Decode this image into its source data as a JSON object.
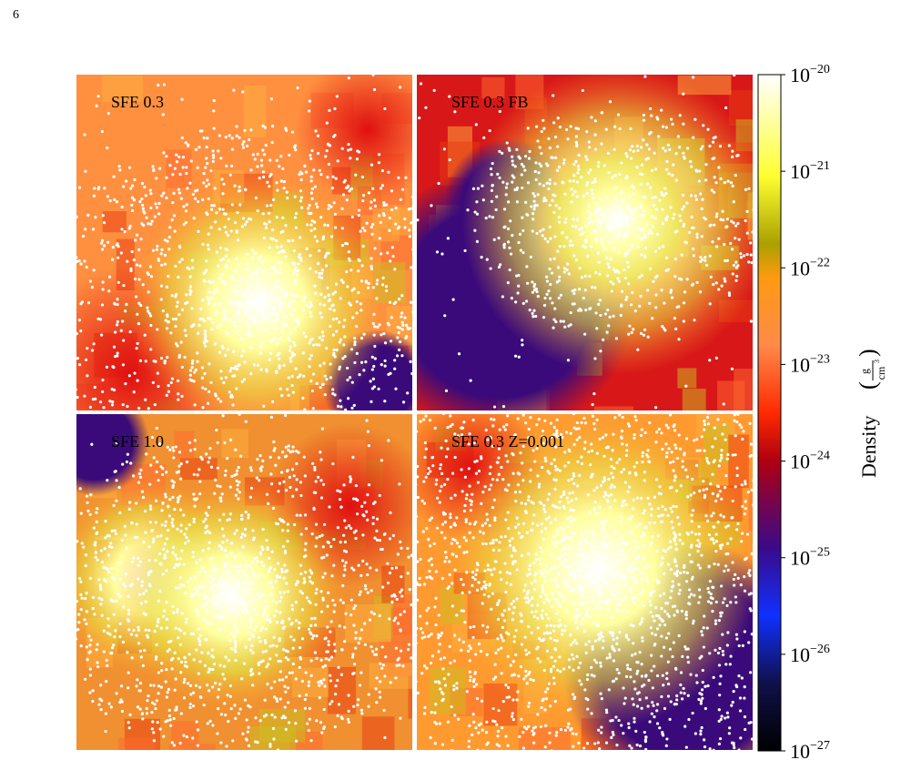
{
  "page_number": "6",
  "panels": [
    {
      "label": "SFE 0.3"
    },
    {
      "label": "SFE 0.3 FB"
    },
    {
      "label": "SFE 1.0"
    },
    {
      "label": "SFE 0.3 Z=0.001"
    }
  ],
  "colorbar": {
    "label": "Density",
    "unit_numerator": "g",
    "unit_denominator": "cm",
    "unit_denominator_exponent": "3",
    "ticks": [
      {
        "base": "10",
        "exponent": "−20"
      },
      {
        "base": "10",
        "exponent": "−21"
      },
      {
        "base": "10",
        "exponent": "−22"
      },
      {
        "base": "10",
        "exponent": "−23"
      },
      {
        "base": "10",
        "exponent": "−24"
      },
      {
        "base": "10",
        "exponent": "−25"
      },
      {
        "base": "10",
        "exponent": "−26"
      },
      {
        "base": "10",
        "exponent": "−27"
      }
    ]
  }
}
